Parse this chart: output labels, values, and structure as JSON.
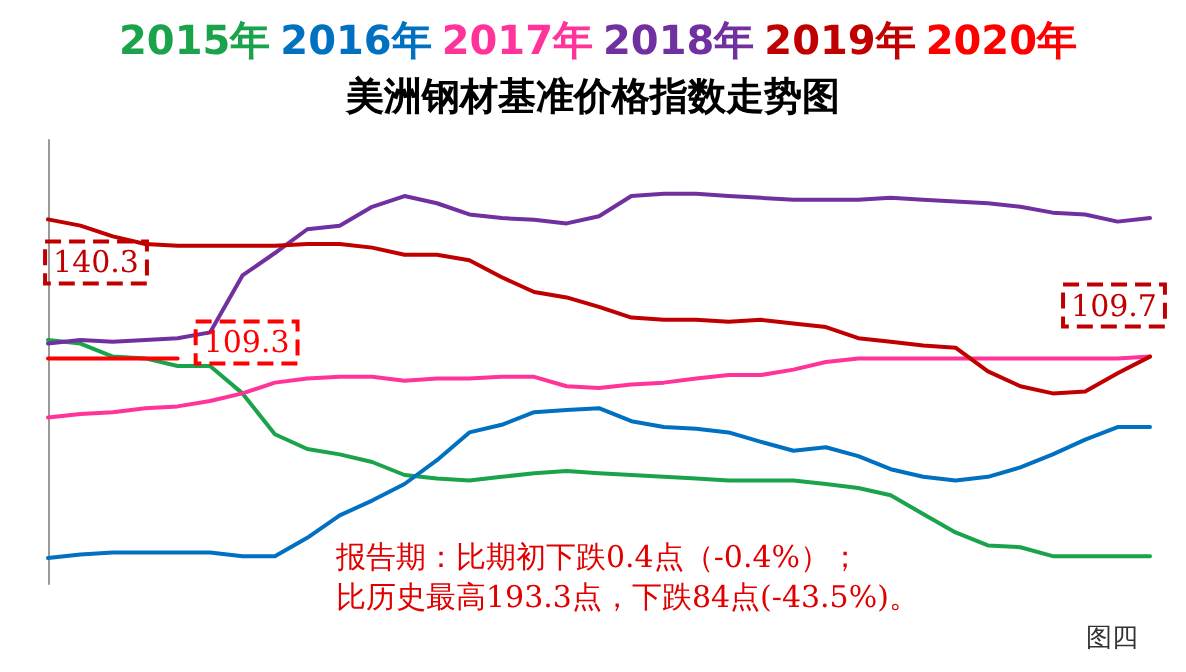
{
  "chart_data": {
    "type": "line",
    "title": "美洲钢材基准价格指数走势图",
    "categories": [
      null,
      null,
      null,
      null,
      null,
      null,
      null,
      null,
      null,
      null,
      null,
      null,
      null,
      null,
      null,
      null,
      null,
      null,
      null,
      null,
      null,
      null,
      null,
      null,
      null,
      null,
      null,
      null,
      null,
      null,
      null,
      null,
      null,
      null,
      null
    ],
    "series": [
      {
        "name": "2015年",
        "color": "#1aa34a",
        "values": [
          113.4,
          112.6,
          109.7,
          109.3,
          107.6,
          107.6,
          101.5,
          92.4,
          89.1,
          87.9,
          86.2,
          83.3,
          82.5,
          82.1,
          82.9,
          83.7,
          84.2,
          83.7,
          83.3,
          82.9,
          82.5,
          82.1,
          82.1,
          82.1,
          81.3,
          80.4,
          78.8,
          74.6,
          70.5,
          67.6,
          67.2,
          65.2,
          65.2,
          65.2,
          65.2
        ]
      },
      {
        "name": "2016年",
        "color": "#0070c0",
        "values": [
          64.8,
          65.6,
          66.0,
          66.0,
          66.0,
          66.0,
          65.2,
          65.2,
          69.3,
          74.3,
          77.6,
          81.3,
          86.6,
          92.8,
          94.5,
          97.3,
          97.8,
          98.2,
          95.3,
          94.0,
          93.6,
          92.8,
          90.7,
          88.7,
          89.5,
          87.5,
          84.6,
          82.9,
          82.1,
          82.9,
          85.0,
          87.9,
          91.2,
          94.0,
          94.0
        ]
      },
      {
        "name": "2017年",
        "color": "#ff3399",
        "values": [
          96.1,
          96.9,
          97.3,
          98.2,
          98.6,
          99.8,
          101.5,
          103.9,
          104.8,
          105.2,
          105.2,
          104.3,
          104.8,
          104.8,
          105.2,
          105.2,
          103.1,
          102.7,
          103.5,
          103.9,
          104.8,
          105.6,
          105.6,
          106.8,
          108.5,
          109.3,
          109.3,
          109.3,
          109.3,
          109.3,
          109.3,
          109.3,
          109.3,
          109.3,
          109.7
        ]
      },
      {
        "name": "2018年",
        "color": "#7030a0",
        "values": [
          112.6,
          113.4,
          113.0,
          113.4,
          113.8,
          115.1,
          127.8,
          132.8,
          138.1,
          138.9,
          143.1,
          145.5,
          143.9,
          141.4,
          140.6,
          140.2,
          139.4,
          141.0,
          145.5,
          146.0,
          146.0,
          145.5,
          145.1,
          144.7,
          144.7,
          144.7,
          145.1,
          144.7,
          144.3,
          143.9,
          143.1,
          141.8,
          141.4,
          139.8,
          140.6
        ]
      },
      {
        "name": "2019年",
        "color": "#c00000",
        "values": [
          140.3,
          138.9,
          136.5,
          134.8,
          134.4,
          134.4,
          134.4,
          134.4,
          134.8,
          134.8,
          134.0,
          132.4,
          132.4,
          131.2,
          127.4,
          124.1,
          122.9,
          120.8,
          118.4,
          117.9,
          117.9,
          117.5,
          117.9,
          117.1,
          116.3,
          113.8,
          113.0,
          112.2,
          111.7,
          106.4,
          103.1,
          101.5,
          101.9,
          106.0,
          109.7
        ],
        "value_labels": [
          "140.3",
          null,
          null,
          null,
          null,
          null,
          null,
          null,
          null,
          null,
          null,
          null,
          null,
          null,
          null,
          null,
          null,
          null,
          null,
          null,
          null,
          null,
          null,
          null,
          null,
          null,
          null,
          null,
          null,
          null,
          null,
          null,
          null,
          null,
          "109.7"
        ]
      },
      {
        "name": "2020年",
        "color": "#ff0000",
        "values": [
          109.3,
          109.3,
          109.3,
          109.3,
          109.3,
          null,
          null,
          null,
          null,
          null,
          null,
          null,
          null,
          null,
          null,
          null,
          null,
          null,
          null,
          null,
          null,
          null,
          null,
          null,
          null,
          null,
          null,
          null,
          null,
          null,
          null,
          null,
          null,
          null,
          null
        ],
        "value_labels": [
          null,
          null,
          null,
          null,
          "109.3",
          null,
          null,
          null,
          null,
          null,
          null,
          null,
          null,
          null,
          null,
          null,
          null,
          null,
          null,
          null,
          null,
          null,
          null,
          null,
          null,
          null,
          null,
          null,
          null,
          null,
          null,
          null,
          null,
          null,
          null
        ]
      }
    ],
    "ylim": [
      59,
      158
    ],
    "tick_labels": false,
    "grid": false,
    "legend": "top",
    "marker": "none",
    "line_style": "solid",
    "annotations": [
      "报告期：比期初下跌0.4点（-0.4%）；",
      "比历史最高193.3点，下跌84点(-43.5%)。",
      "图四"
    ]
  }
}
